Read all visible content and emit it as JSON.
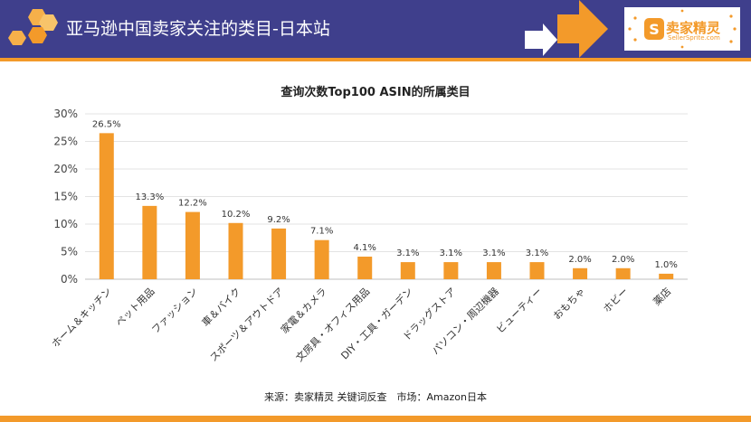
{
  "header": {
    "title": "亚马逊中国卖家关注的类目-日本站"
  },
  "logo": {
    "name": "卖家精灵",
    "url": "SellerSprite.com"
  },
  "source": "来源：卖家精灵 关键词反查　市场：Amazon日本",
  "colors": {
    "header_bg": "#3f3f8c",
    "accent": "#f39a2a",
    "bar": "#f39a2a"
  },
  "chart_data": {
    "type": "bar",
    "title": "查询次数Top100 ASIN的所属类目",
    "categories": [
      "ホーム＆キッチン",
      "ペット用品",
      "ファッション",
      "車＆バイク",
      "スポーツ＆アウトドア",
      "家電＆カメラ",
      "文房具・オフィス用品",
      "DIY・工具・ガーデン",
      "ドラッグストア",
      "パソコン・周辺機器",
      "ビューティー",
      "おもちゃ",
      "ホビー",
      "薬店"
    ],
    "values": [
      26.5,
      13.3,
      12.2,
      10.2,
      9.2,
      7.1,
      4.1,
      3.1,
      3.1,
      3.1,
      3.1,
      2.0,
      2.0,
      1.0
    ],
    "value_labels": [
      "26.5%",
      "13.3%",
      "12.2%",
      "10.2%",
      "9.2%",
      "7.1%",
      "4.1%",
      "3.1%",
      "3.1%",
      "3.1%",
      "3.1%",
      "2.0%",
      "2.0%",
      "1.0%"
    ],
    "yticks": [
      0,
      5,
      10,
      15,
      20,
      25,
      30
    ],
    "ytick_labels": [
      "0%",
      "5%",
      "10%",
      "15%",
      "20%",
      "25%",
      "30%"
    ],
    "ylim": [
      0,
      30
    ],
    "grid": true,
    "legend": "none"
  }
}
